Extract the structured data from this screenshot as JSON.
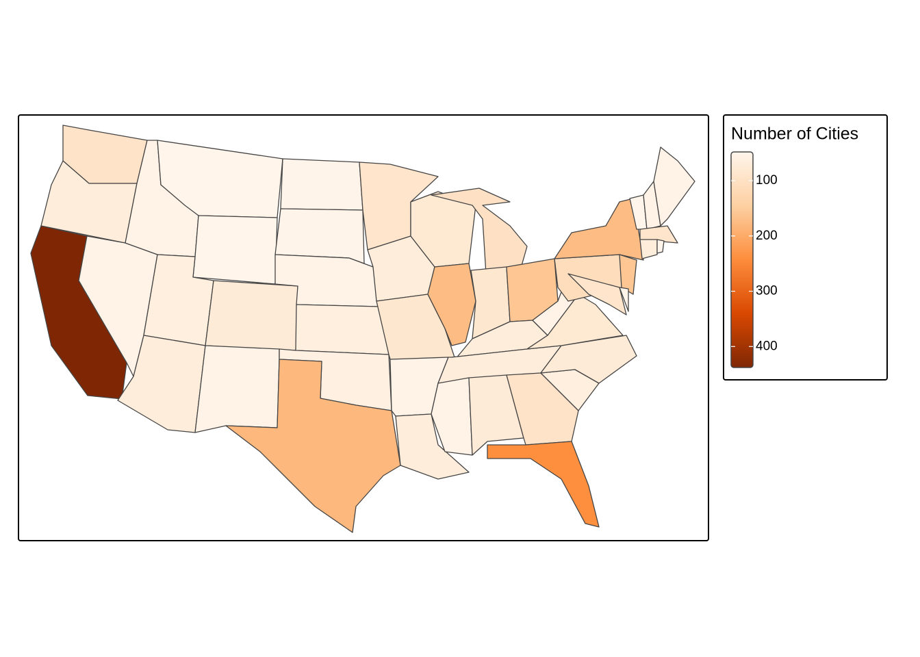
{
  "chart_data": {
    "type": "choropleth",
    "legend_title": "Number of Cities",
    "values": [
      95,
      70,
      438,
      55,
      55,
      48,
      48,
      65,
      70,
      75,
      55,
      50,
      50,
      55,
      65,
      60,
      180,
      90,
      70,
      85,
      55,
      70,
      80,
      175,
      100,
      85,
      160,
      70,
      70,
      55,
      75,
      95,
      240,
      65,
      75,
      80,
      55,
      110,
      175,
      160,
      90,
      50,
      48,
      55,
      55,
      90,
      70,
      50
    ],
    "zlim": [
      48,
      438
    ],
    "zticks": [
      100,
      200,
      300,
      400
    ],
    "palette": [
      "#fff5eb",
      "#fdd0a2",
      "#fd8d3c",
      "#d94801",
      "#7f2704"
    ],
    "border_color": "#444444"
  }
}
